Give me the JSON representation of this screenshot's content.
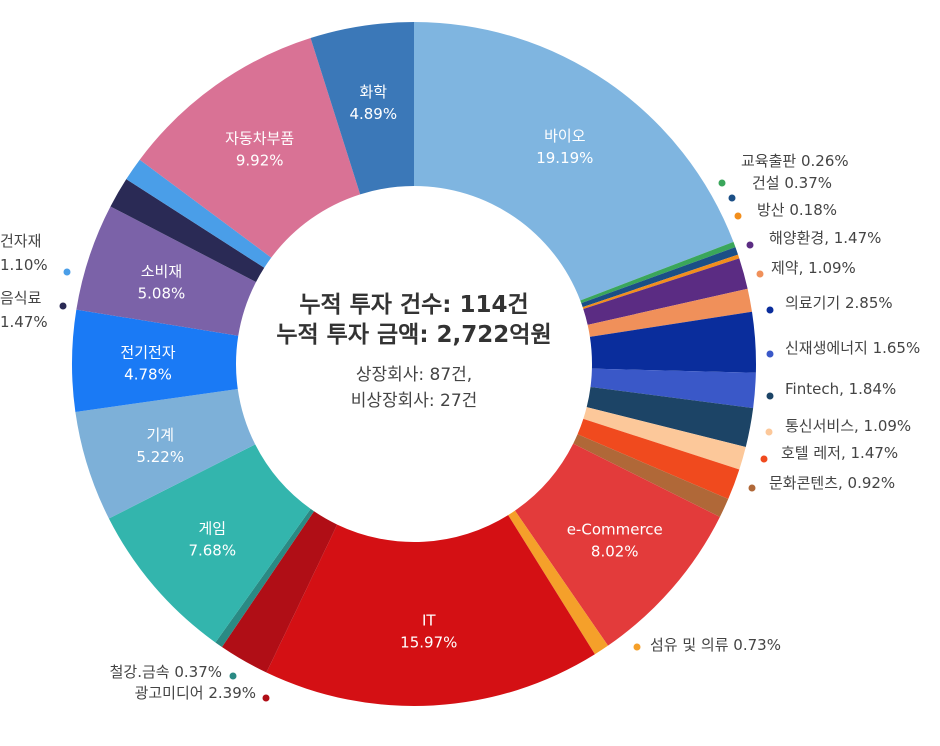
{
  "center": {
    "line1": "누적 투자  건수: 114건",
    "line2": "누적 투자 금액: 2,722억원",
    "line3": "상장회사: 87건,",
    "line4": "비상장회사: 27건"
  },
  "chart_data": {
    "type": "pie",
    "style": "donut",
    "slices": [
      {
        "name": "바이오",
        "value": 19.19,
        "label": "19.19%",
        "color": "#7fb5e0",
        "labelPos": "inside"
      },
      {
        "name": "교육출판",
        "value": 0.26,
        "label": "0.26%",
        "color": "#3aa65b",
        "labelPos": "outside"
      },
      {
        "name": "건설",
        "value": 0.37,
        "label": "0.37%",
        "color": "#1b4f86",
        "labelPos": "outside"
      },
      {
        "name": "방산",
        "value": 0.18,
        "label": "0.18%",
        "color": "#f28e1c",
        "labelPos": "outside"
      },
      {
        "name": "해양환경",
        "value": 1.47,
        "label": "1.47%",
        "color": "#5b2c83",
        "labelPos": "outside"
      },
      {
        "name": "제약",
        "value": 1.09,
        "label": "1.09%",
        "color": "#f0905a",
        "labelPos": "outside"
      },
      {
        "name": "의료기기",
        "value": 2.85,
        "label": "2.85%",
        "color": "#0a2d9c",
        "labelPos": "outside"
      },
      {
        "name": "신재생에너지",
        "value": 1.65,
        "label": "1.65%",
        "color": "#3a58c8",
        "labelPos": "outside"
      },
      {
        "name": "Fintech",
        "value": 1.84,
        "label": "1.84%",
        "color": "#1c4466",
        "labelPos": "outside"
      },
      {
        "name": "통신서비스",
        "value": 1.09,
        "label": "1.09%",
        "color": "#fcc89a",
        "labelPos": "outside"
      },
      {
        "name": "호텔 레저",
        "value": 1.47,
        "label": "1.47%",
        "color": "#f04a1e",
        "labelPos": "outside"
      },
      {
        "name": "문화콘텐츠",
        "value": 0.92,
        "label": "0.92%",
        "color": "#b06838",
        "labelPos": "outside"
      },
      {
        "name": "e-Commerce",
        "value": 8.02,
        "label": "8.02%",
        "color": "#e33b3b",
        "labelPos": "inside"
      },
      {
        "name": "섬유 및 의류",
        "value": 0.73,
        "label": "0.73%",
        "color": "#f5a02a",
        "labelPos": "outside"
      },
      {
        "name": "IT",
        "value": 15.97,
        "label": "15.97%",
        "color": "#d41014",
        "labelPos": "inside"
      },
      {
        "name": "광고미디어",
        "value": 2.39,
        "label": "2.39%",
        "color": "#b00e16",
        "labelPos": "outside"
      },
      {
        "name": "철강.금속",
        "value": 0.37,
        "label": "0.37%",
        "color": "#2a8a84",
        "labelPos": "outside"
      },
      {
        "name": "게임",
        "value": 7.68,
        "label": "7.68%",
        "color": "#33b5ad",
        "labelPos": "inside"
      },
      {
        "name": "기계",
        "value": 5.22,
        "label": "5.22%",
        "color": "#7db0d8",
        "labelPos": "inside"
      },
      {
        "name": "전기전자",
        "value": 4.78,
        "label": "4.78%",
        "color": "#1a7af5",
        "labelPos": "inside"
      },
      {
        "name": "소비재",
        "value": 5.08,
        "label": "5.08%",
        "color": "#7b62a8",
        "labelPos": "inside"
      },
      {
        "name": "음식료",
        "value": 1.47,
        "label": "1.47%",
        "color": "#2a2a55",
        "labelPos": "outside"
      },
      {
        "name": "건자재",
        "value": 1.1,
        "label": "1.10%",
        "color": "#4a9ee8",
        "labelPos": "outside"
      },
      {
        "name": "자동차부품",
        "value": 9.92,
        "label": "9.92%",
        "color": "#d97295",
        "labelPos": "inside"
      },
      {
        "name": "화학",
        "value": 4.89,
        "label": "4.89%",
        "color": "#3b78b8",
        "labelPos": "inside"
      }
    ]
  }
}
